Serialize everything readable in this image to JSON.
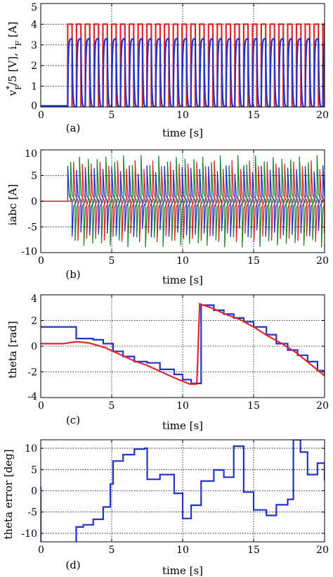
{
  "chart_data": [
    {
      "type": "line",
      "caption": "(a)",
      "xlabel": "time [s]",
      "ylabel_main": "v",
      "ylabel_sup": "*",
      "ylabel_sub": "F",
      "ylabel_mid": "/5 [V], i",
      "ylabel_sub2": "F",
      "ylabel_end": " [A]",
      "xlim": [
        0,
        20
      ],
      "ylim": [
        0,
        5
      ],
      "xticks": [
        0,
        5,
        10,
        15,
        20
      ],
      "yticks": [
        0,
        1,
        2,
        3,
        4,
        5
      ],
      "grid": true,
      "series": [
        {
          "color": "#e0262b",
          "pattern": "square_wave",
          "t_start": 1.9,
          "period": 0.62,
          "duty": 0.5,
          "high": 4.0,
          "low": 0.0,
          "pre_value": 0.0
        },
        {
          "color": "#2233cc",
          "pattern": "rc_response",
          "t_start": 1.9,
          "period": 0.62,
          "duty": 0.5,
          "high": 3.3,
          "low": 0.0,
          "pre_value": 0.05
        }
      ]
    },
    {
      "type": "line",
      "caption": "(b)",
      "xlabel": "time [s]",
      "ylabel": "iabc [A]",
      "xlim": [
        0,
        20
      ],
      "ylim": [
        -10,
        10
      ],
      "xticks": [
        0,
        5,
        10,
        15,
        20
      ],
      "yticks": [
        -10,
        -5,
        0,
        5,
        10
      ],
      "grid": true,
      "series": [
        {
          "color": "#2233cc",
          "pattern": "spikes",
          "t_start": 1.9,
          "period": 0.62,
          "amplitude": 7.0,
          "phase": 0
        },
        {
          "color": "#1e8a2e",
          "pattern": "spikes",
          "t_start": 1.9,
          "period": 0.62,
          "amplitude": 9.0,
          "phase": 0.21
        },
        {
          "color": "#e0262b",
          "pattern": "spikes",
          "t_start": 1.9,
          "period": 0.62,
          "amplitude": 8.0,
          "phase": 0.41
        }
      ]
    },
    {
      "type": "line",
      "caption": "(c)",
      "xlabel": "time [s]",
      "ylabel": "theta [rad]",
      "xlim": [
        0,
        20
      ],
      "ylim": [
        -4,
        4
      ],
      "xticks": [
        0,
        5,
        10,
        15,
        20
      ],
      "yticks": [
        -4,
        -2,
        0,
        2,
        4
      ],
      "grid": true,
      "series": [
        {
          "color": "#2233cc",
          "step": true,
          "points": [
            [
              0,
              1.5
            ],
            [
              2.5,
              1.5
            ],
            [
              2.5,
              0.6
            ],
            [
              3.7,
              0.5
            ],
            [
              4.4,
              0.2
            ],
            [
              5.1,
              -0.4
            ],
            [
              5.8,
              -0.8
            ],
            [
              6.6,
              -1.2
            ],
            [
              7.5,
              -1.3
            ],
            [
              8.4,
              -1.8
            ],
            [
              9.4,
              -2.2
            ],
            [
              10.0,
              -2.6
            ],
            [
              10.6,
              -2.9
            ],
            [
              11.0,
              -2.9
            ],
            [
              11.3,
              3.2
            ],
            [
              12.2,
              2.8
            ],
            [
              12.9,
              2.5
            ],
            [
              13.6,
              2.2
            ],
            [
              14.3,
              1.9
            ],
            [
              15.0,
              1.5
            ],
            [
              15.9,
              0.9
            ],
            [
              16.6,
              0.2
            ],
            [
              17.4,
              -0.3
            ],
            [
              18.1,
              -0.7
            ],
            [
              18.8,
              -1.2
            ],
            [
              19.5,
              -1.9
            ],
            [
              20,
              -2.2
            ]
          ]
        },
        {
          "color": "#e0262b",
          "step": false,
          "points": [
            [
              0,
              0.2
            ],
            [
              1.6,
              0.2
            ],
            [
              2.2,
              0.3
            ],
            [
              2.6,
              0.35
            ],
            [
              3.4,
              0.25
            ],
            [
              4.5,
              -0.1
            ],
            [
              5.5,
              -0.6
            ],
            [
              6.5,
              -1.1
            ],
            [
              7.5,
              -1.5
            ],
            [
              8.5,
              -2.0
            ],
            [
              9.5,
              -2.5
            ],
            [
              10.5,
              -2.95
            ],
            [
              11.0,
              -2.95
            ],
            [
              11.2,
              3.3
            ],
            [
              12.0,
              3.0
            ],
            [
              13.0,
              2.5
            ],
            [
              14.0,
              2.1
            ],
            [
              15.0,
              1.5
            ],
            [
              16.0,
              0.8
            ],
            [
              17.0,
              0.2
            ],
            [
              18.0,
              -0.5
            ],
            [
              19.0,
              -1.4
            ],
            [
              20.0,
              -2.3
            ]
          ]
        }
      ]
    },
    {
      "type": "line",
      "caption": "(d)",
      "xlabel": "time [s]",
      "ylabel": "theta error [deg]",
      "xlim": [
        0,
        20
      ],
      "ylim": [
        -12,
        12
      ],
      "xticks": [
        0,
        5,
        10,
        15,
        20
      ],
      "yticks": [
        -10,
        -5,
        0,
        5,
        10
      ],
      "grid": true,
      "series": [
        {
          "color": "#2233cc",
          "step": true,
          "points": [
            [
              0,
              -10
            ],
            [
              0,
              1
            ],
            [
              0,
              -13
            ],
            [
              2.5,
              -13
            ],
            [
              2.5,
              -8.5
            ],
            [
              3.0,
              -8
            ],
            [
              3.7,
              -6.7
            ],
            [
              4.4,
              -3.8
            ],
            [
              4.9,
              1.6
            ],
            [
              5.1,
              7.0
            ],
            [
              5.8,
              8.5
            ],
            [
              6.6,
              9.8
            ],
            [
              7.3,
              10.0
            ],
            [
              7.5,
              2.7
            ],
            [
              8.4,
              3.8
            ],
            [
              9.4,
              -0.6
            ],
            [
              10.0,
              -6.5
            ],
            [
              10.6,
              -3.4
            ],
            [
              11.0,
              -3.4
            ],
            [
              11.3,
              2.3
            ],
            [
              12.2,
              4.9
            ],
            [
              12.9,
              3.2
            ],
            [
              13.6,
              10.5
            ],
            [
              14.3,
              -0.3
            ],
            [
              15.0,
              -4.5
            ],
            [
              15.9,
              -5.8
            ],
            [
              16.6,
              -3.3
            ],
            [
              17.4,
              -2.0
            ],
            [
              17.8,
              12.0
            ],
            [
              18.3,
              9.1
            ],
            [
              18.8,
              3.8
            ],
            [
              19.5,
              6.5
            ],
            [
              20,
              2.4
            ]
          ]
        }
      ]
    }
  ]
}
